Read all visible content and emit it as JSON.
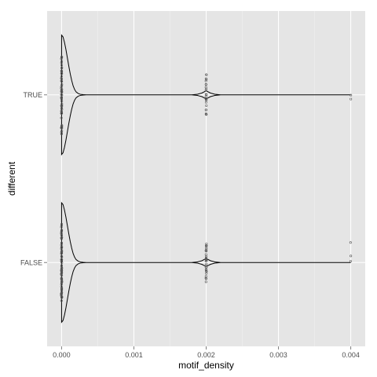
{
  "chart_data": {
    "type": "violin",
    "orientation": "horizontal",
    "xlabel": "motif_density",
    "ylabel": "different",
    "xlim": [
      -0.0002,
      0.0042
    ],
    "x_ticks": [
      0.0,
      0.001,
      0.002,
      0.003,
      0.004
    ],
    "x_tick_labels": [
      "0.000",
      "0.001",
      "0.002",
      "0.003",
      "0.004"
    ],
    "categories": [
      "TRUE",
      "FALSE"
    ],
    "grid": true,
    "legend": "none",
    "colors": {
      "panel": "#e5e5e5",
      "grid_major": "#ffffff",
      "grid_minor": "#f2f2f2",
      "outline": "#000000",
      "points": "#555555"
    },
    "series": [
      {
        "category": "TRUE",
        "density_profile": [
          [
            0.0,
            1.0
          ],
          [
            2e-05,
            0.97
          ],
          [
            4e-05,
            0.88
          ],
          [
            6e-05,
            0.76
          ],
          [
            8e-05,
            0.62
          ],
          [
            0.0001,
            0.48
          ],
          [
            0.00012,
            0.35
          ],
          [
            0.00014,
            0.24
          ],
          [
            0.00016,
            0.15
          ],
          [
            0.00018,
            0.09
          ],
          [
            0.0002,
            0.05
          ],
          [
            0.00023,
            0.022
          ],
          [
            0.00026,
            0.009
          ],
          [
            0.0003,
            0.003
          ],
          [
            0.00034,
            0.0
          ],
          [
            0.0018,
            0.0
          ],
          [
            0.00188,
            0.01
          ],
          [
            0.00194,
            0.03
          ],
          [
            0.00198,
            0.055
          ],
          [
            0.002,
            0.065
          ],
          [
            0.00202,
            0.055
          ],
          [
            0.00206,
            0.03
          ],
          [
            0.00212,
            0.01
          ],
          [
            0.0022,
            0.0
          ],
          [
            0.004,
            0.0
          ]
        ],
        "point_clusters": [
          {
            "x": 0.0,
            "n": 60
          },
          {
            "x": 0.002,
            "n": 24
          },
          {
            "x": 0.004,
            "n": 2
          }
        ]
      },
      {
        "category": "FALSE",
        "density_profile": [
          [
            0.0,
            1.0
          ],
          [
            2e-05,
            0.97
          ],
          [
            4e-05,
            0.88
          ],
          [
            6e-05,
            0.76
          ],
          [
            8e-05,
            0.62
          ],
          [
            0.0001,
            0.48
          ],
          [
            0.00012,
            0.35
          ],
          [
            0.00014,
            0.24
          ],
          [
            0.00016,
            0.15
          ],
          [
            0.00018,
            0.09
          ],
          [
            0.0002,
            0.05
          ],
          [
            0.00023,
            0.022
          ],
          [
            0.00026,
            0.009
          ],
          [
            0.0003,
            0.003
          ],
          [
            0.00034,
            0.0
          ],
          [
            0.0018,
            0.0
          ],
          [
            0.00188,
            0.01
          ],
          [
            0.00194,
            0.03
          ],
          [
            0.00198,
            0.055
          ],
          [
            0.002,
            0.065
          ],
          [
            0.00202,
            0.055
          ],
          [
            0.00206,
            0.03
          ],
          [
            0.00212,
            0.01
          ],
          [
            0.0022,
            0.0
          ],
          [
            0.004,
            0.0
          ]
        ],
        "point_clusters": [
          {
            "x": 0.0,
            "n": 90
          },
          {
            "x": 0.002,
            "n": 30
          },
          {
            "x": 0.004,
            "n": 3
          }
        ]
      }
    ]
  }
}
